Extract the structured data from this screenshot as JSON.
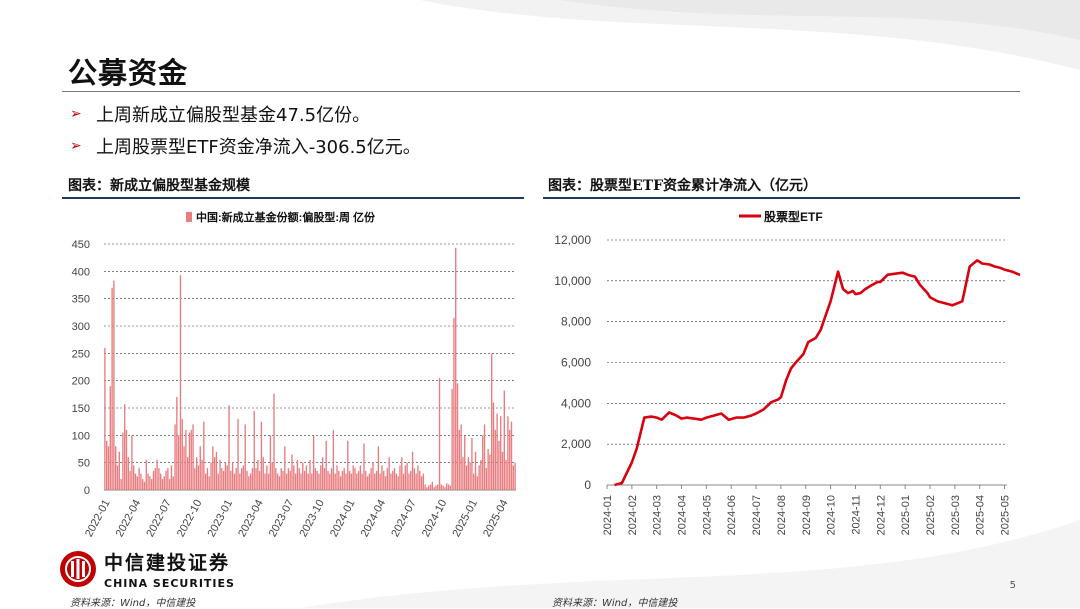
{
  "page": {
    "title": "公募资金",
    "bullets": [
      "上周新成立偏股型基金47.5亿份。",
      "上周股票型ETF资金净流入-306.5亿元。"
    ],
    "page_number": "5",
    "logo": {
      "cn": "中信建投证券",
      "en": "CHINA SECURITIES"
    },
    "colors": {
      "bar": "#e87d80",
      "line": "#d9000f",
      "accent": "#c00000",
      "rule": "#1f3a5a"
    }
  },
  "chart_data": [
    {
      "type": "bar",
      "caption": "图表：新成立偏股型基金规模",
      "source": "资料来源：Wind，中信建投",
      "legend": "中国:新成立基金份额:偏股型:周 亿份",
      "legend_position": "top-center",
      "ylim": [
        0,
        450
      ],
      "yticks": [
        0,
        50,
        100,
        150,
        200,
        250,
        300,
        350,
        400,
        450
      ],
      "grid": true,
      "xticks": [
        "2022-01",
        "2022-04",
        "2022-07",
        "2022-10",
        "2023-01",
        "2023-04",
        "2023-07",
        "2023-10",
        "2024-01",
        "2024-04",
        "2024-07",
        "2024-10",
        "2025-01",
        "2025-04"
      ],
      "values": [
        260,
        90,
        80,
        190,
        370,
        383,
        80,
        45,
        70,
        20,
        105,
        157,
        110,
        60,
        35,
        100,
        45,
        30,
        25,
        40,
        30,
        20,
        15,
        55,
        30,
        25,
        20,
        35,
        40,
        55,
        40,
        30,
        20,
        25,
        35,
        40,
        20,
        45,
        25,
        120,
        170,
        100,
        393,
        130,
        80,
        110,
        60,
        105,
        110,
        120,
        40,
        60,
        45,
        80,
        55,
        125,
        30,
        40,
        25,
        50,
        80,
        60,
        70,
        30,
        55,
        40,
        35,
        50,
        45,
        155,
        35,
        50,
        30,
        40,
        130,
        30,
        40,
        45,
        120,
        35,
        25,
        30,
        40,
        145,
        40,
        55,
        35,
        125,
        60,
        30,
        45,
        30,
        100,
        50,
        176,
        40,
        30,
        25,
        40,
        35,
        80,
        30,
        40,
        35,
        65,
        45,
        30,
        55,
        40,
        30,
        50,
        35,
        45,
        30,
        55,
        30,
        100,
        40,
        35,
        30,
        45,
        60,
        40,
        90,
        35,
        30,
        40,
        110,
        30,
        45,
        35,
        25,
        35,
        40,
        30,
        90,
        35,
        30,
        45,
        40,
        30,
        35,
        45,
        30,
        85,
        35,
        25,
        30,
        40,
        50,
        30,
        35,
        80,
        30,
        45,
        35,
        25,
        40,
        60,
        30,
        35,
        40,
        30,
        25,
        45,
        60,
        30,
        45,
        50,
        30,
        35,
        70,
        40,
        30,
        45,
        35,
        25,
        30,
        10,
        5,
        8,
        10,
        15,
        5,
        8,
        10,
        205,
        10,
        8,
        5,
        12,
        10,
        8,
        185,
        315,
        443,
        195,
        110,
        120,
        60,
        100,
        45,
        60,
        50,
        95,
        30,
        70,
        25,
        45,
        55,
        100,
        120,
        40,
        75,
        65,
        250,
        160,
        110,
        140,
        90,
        135,
        70,
        182,
        55,
        135,
        110,
        125,
        45,
        50
      ]
    },
    {
      "type": "line",
      "caption": "图表：股票型ETF资金累计净流入（亿元）",
      "source": "资料来源：Wind，中信建投",
      "legend_position": "top-center",
      "ylim": [
        0,
        12000
      ],
      "yticks": [
        "0",
        "2,000",
        "4,000",
        "6,000",
        "8,000",
        "10,000",
        "12,000"
      ],
      "grid": true,
      "xticks": [
        "2024-01",
        "2024-02",
        "2024-03",
        "2024-04",
        "2024-05",
        "2024-06",
        "2024-07",
        "2024-08",
        "2024-09",
        "2024-10",
        "2024-11",
        "2024-12",
        "2025-01",
        "2025-02",
        "2025-03",
        "2025-04",
        "2025-05"
      ],
      "series": [
        {
          "name": "股票型ETF",
          "x": [
            0.3,
            0.6,
            1.0,
            1.2,
            1.5,
            1.8,
            2.0,
            2.2,
            2.5,
            2.8,
            3.0,
            3.2,
            3.5,
            3.8,
            4.0,
            4.3,
            4.6,
            4.9,
            5.2,
            5.5,
            5.8,
            6.0,
            6.3,
            6.6,
            6.9,
            7.0,
            7.2,
            7.4,
            7.6,
            7.9,
            8.1,
            8.4,
            8.6,
            8.8,
            9.0,
            9.3,
            9.5,
            9.7,
            9.9,
            10.0,
            10.2,
            10.4,
            10.6,
            10.9,
            11.0,
            11.3,
            11.6,
            11.9,
            12.1,
            12.4,
            12.6,
            12.9,
            13.0,
            13.3,
            13.6,
            13.9,
            14.0,
            14.3,
            14.6,
            14.9,
            15.1,
            15.4,
            15.6,
            15.8,
            16.0,
            16.3,
            16.6,
            16.9,
            17.0
          ],
          "values": [
            0,
            100,
            1100,
            1800,
            3300,
            3350,
            3300,
            3200,
            3550,
            3400,
            3250,
            3300,
            3250,
            3200,
            3300,
            3400,
            3500,
            3200,
            3300,
            3300,
            3400,
            3500,
            3700,
            4050,
            4200,
            4300,
            5100,
            5700,
            6000,
            6400,
            7000,
            7200,
            7600,
            8300,
            9000,
            10450,
            9600,
            9400,
            9500,
            9350,
            9400,
            9600,
            9750,
            9950,
            9950,
            10300,
            10350,
            10400,
            10300,
            10200,
            9800,
            9400,
            9200,
            9000,
            8900,
            8800,
            8850,
            9000,
            10700,
            11000,
            10850,
            10800,
            10700,
            10650,
            10550,
            10450,
            10300,
            10350,
            10300
          ]
        }
      ]
    }
  ]
}
